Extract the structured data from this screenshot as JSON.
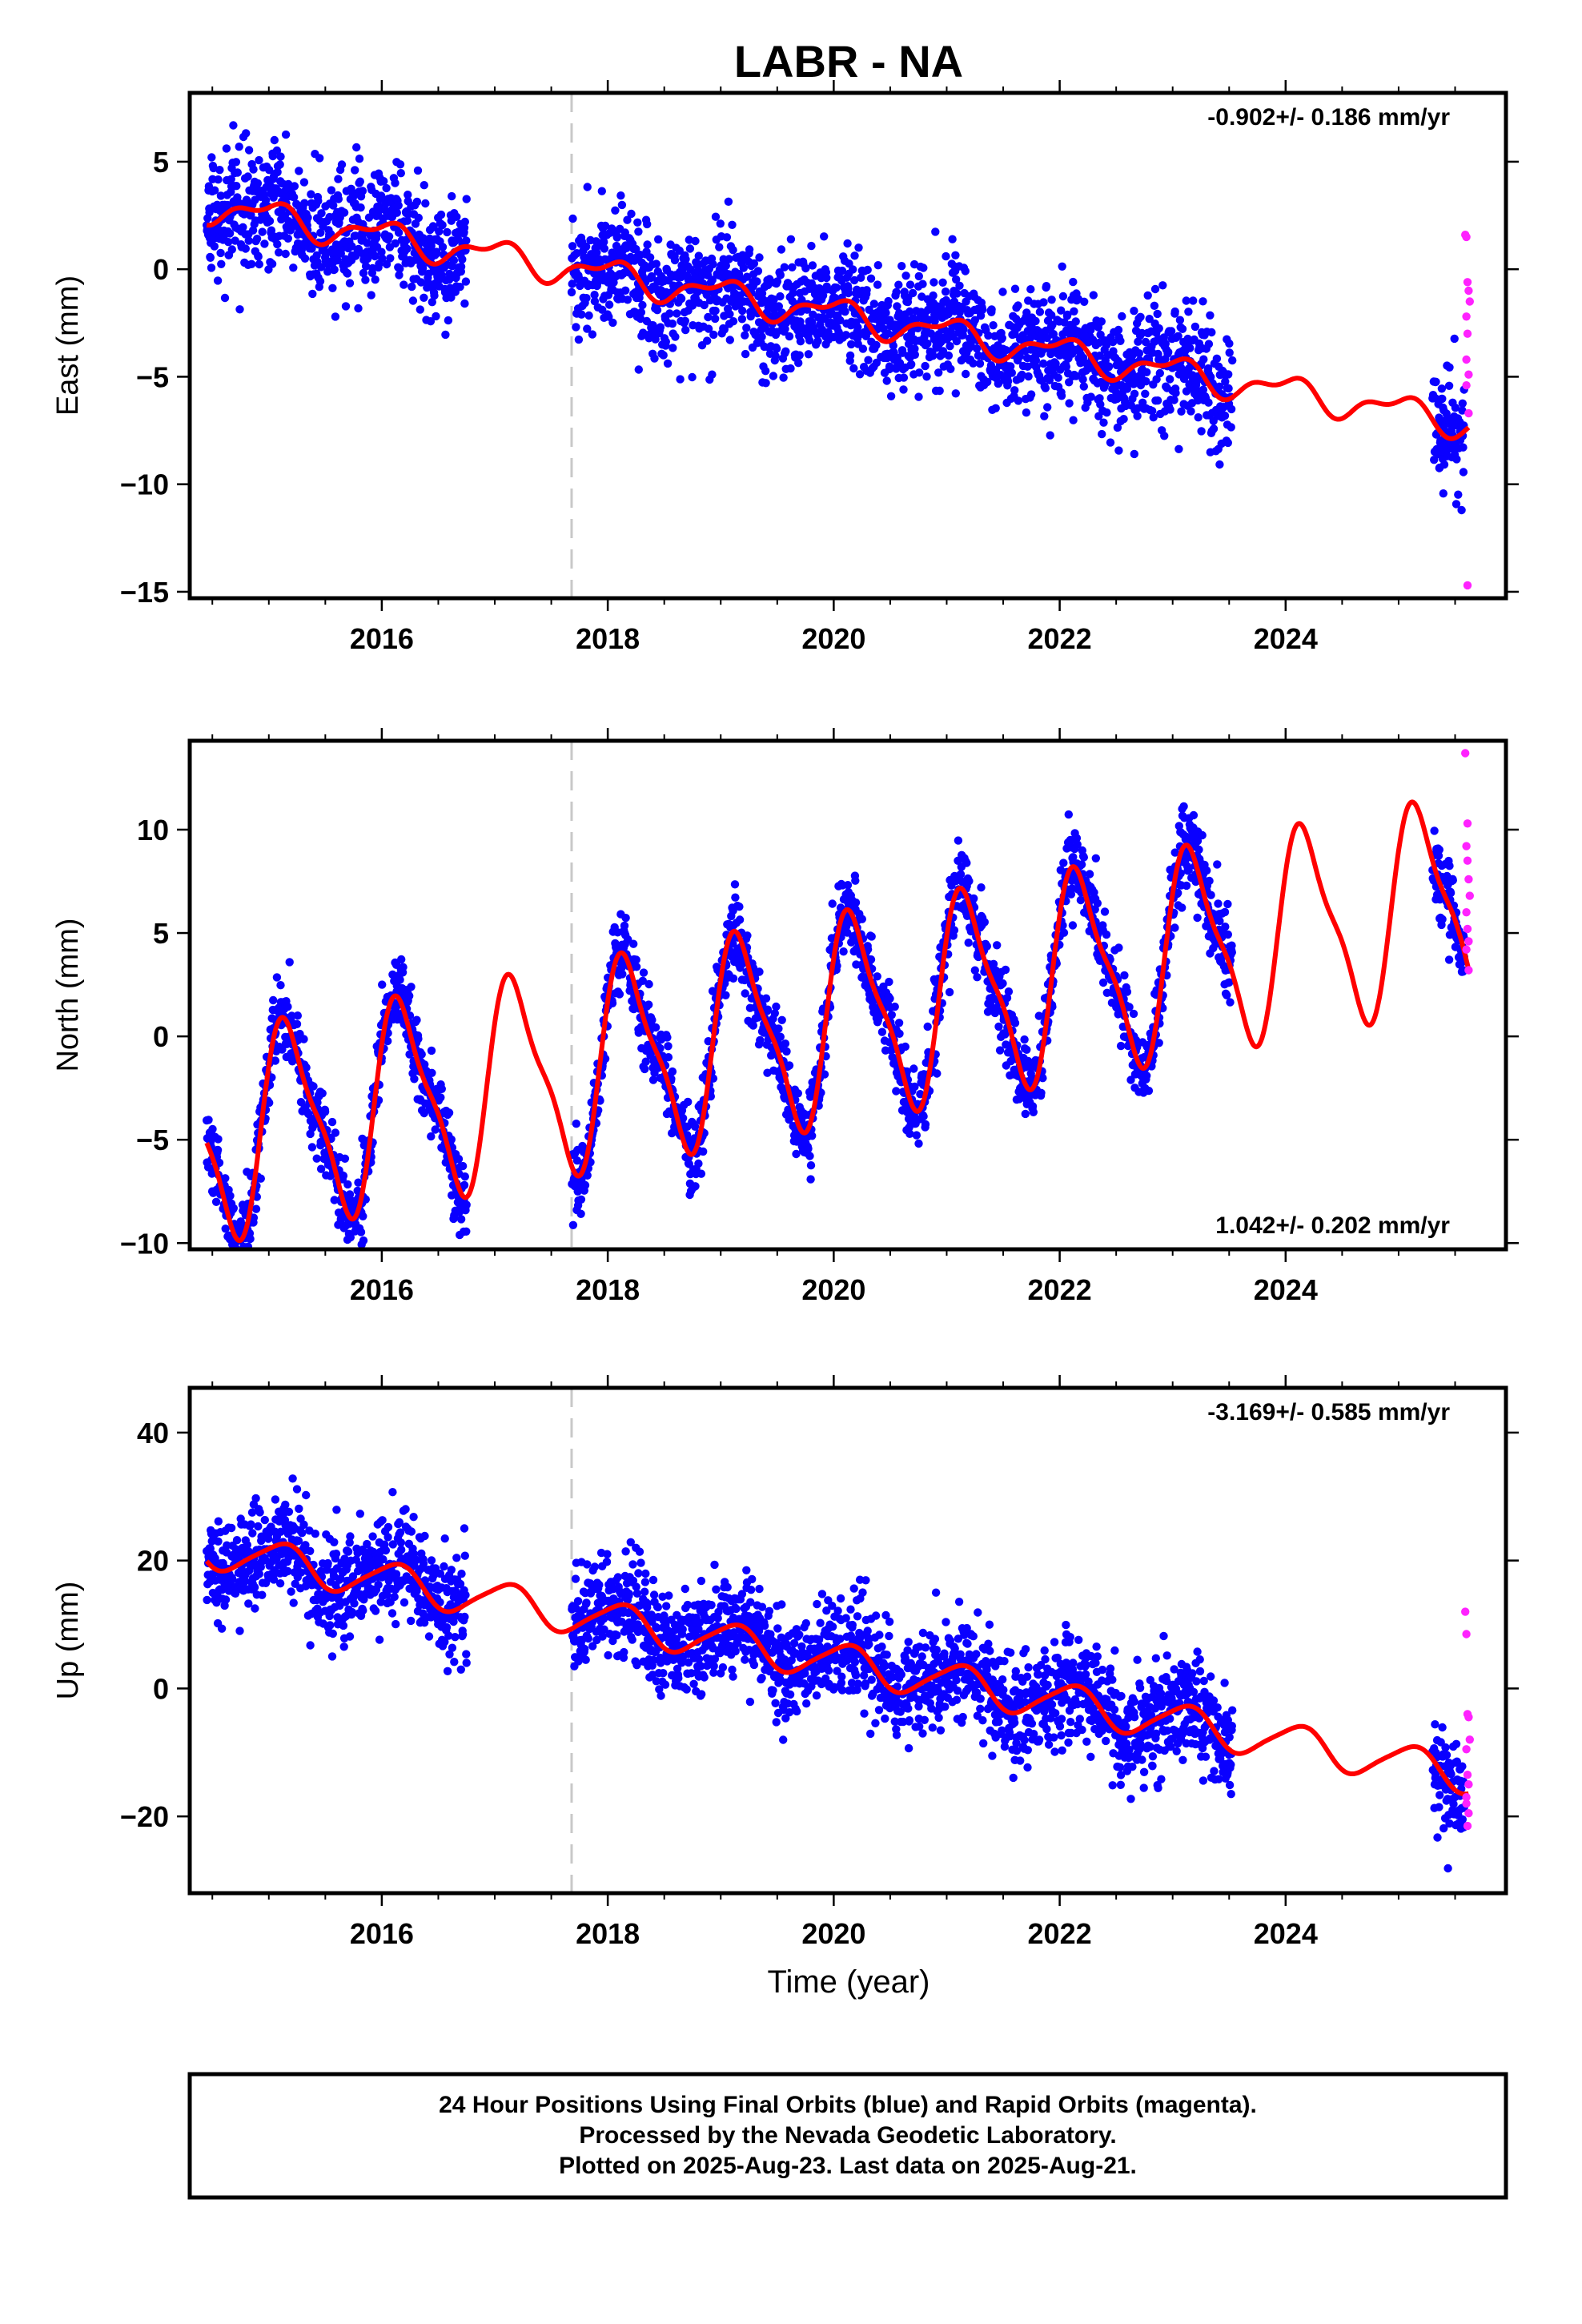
{
  "figure": {
    "title": "LABR - NA",
    "xlabel": "Time (year)",
    "footer_lines": [
      "24 Hour Positions Using Final Orbits (blue) and Rapid Orbits (magenta).",
      "Processed by the Nevada Geodetic Laboratory.",
      "Plotted on 2025-Aug-23. Last data on 2025-Aug-21."
    ],
    "colors": {
      "final_orbits": "#0a00ff",
      "rapid_orbits": "#ff22ff",
      "model": "#ff0000",
      "break_line": "#c8c8c8"
    }
  },
  "chart_data": [
    {
      "type": "scatter",
      "component": "east",
      "ylabel": "East (mm)",
      "rate_label": "-0.902+/- 0.186 mm/yr",
      "rate_position": "top-right",
      "xlim": [
        2014.3,
        2025.95
      ],
      "ylim": [
        -15.3,
        8.2
      ],
      "x_ticks": [
        2016,
        2018,
        2020,
        2022,
        2024
      ],
      "x_tick_labels": [
        "2016",
        "2018",
        "2020",
        "2022",
        "2024"
      ],
      "y_ticks": [
        -15,
        -10,
        -5,
        0,
        5
      ],
      "y_tick_labels": [
        "−15",
        "−10",
        "−5",
        "0",
        "5"
      ],
      "break_lines": [
        2017.68
      ],
      "model_params": {
        "ref": 2014.5,
        "offset": 2.9,
        "rate": -0.902,
        "annual_sin": -0.95,
        "annual_cos": 1.15,
        "semiannual_sin": 0.25,
        "semiannual_cos": -0.2
      },
      "noise_sd": 1.35,
      "final_segments": [
        [
          2014.45,
          2016.75
        ],
        [
          2017.68,
          2023.53
        ],
        [
          2025.3,
          2025.58
        ]
      ],
      "rapid_values": {
        "x": [
          2025.59,
          2025.6,
          2025.61,
          2025.62,
          2025.63,
          2025.6,
          2025.61,
          2025.62,
          2025.6,
          2025.62,
          2025.61,
          2025.6
        ],
        "y": [
          1.6,
          1.5,
          -0.6,
          -1.0,
          -1.5,
          -2.2,
          -3.0,
          -4.9,
          -5.4,
          -6.7,
          -14.7,
          -4.2
        ]
      }
    },
    {
      "type": "scatter",
      "component": "north",
      "ylabel": "North (mm)",
      "rate_label": "1.042+/- 0.202 mm/yr",
      "rate_position": "bottom-right",
      "xlim": [
        2014.3,
        2025.95
      ],
      "ylim": [
        -10.3,
        14.3
      ],
      "x_ticks": [
        2016,
        2018,
        2020,
        2022,
        2024
      ],
      "x_tick_labels": [
        "2016",
        "2018",
        "2020",
        "2022",
        "2024"
      ],
      "y_ticks": [
        -10,
        -5,
        0,
        5,
        10
      ],
      "y_tick_labels": [
        "−10",
        "−5",
        "0",
        "5",
        "10"
      ],
      "break_lines": [
        2017.68
      ],
      "model_params": {
        "ref": 2014.5,
        "offset": -4.9,
        "rate": 1.042,
        "annual_sin": 1.2,
        "annual_cos": 3.6,
        "semiannual_sin": 0.8,
        "semiannual_cos": 1.0
      },
      "noise_sd": 0.95,
      "final_segments": [
        [
          2014.45,
          2016.75
        ],
        [
          2017.68,
          2023.53
        ],
        [
          2025.3,
          2025.58
        ]
      ],
      "rapid_values": {
        "x": [
          2025.59,
          2025.6,
          2025.61,
          2025.62,
          2025.63,
          2025.6,
          2025.61,
          2025.62,
          2025.6,
          2025.62,
          2025.61
        ],
        "y": [
          13.7,
          9.2,
          8.5,
          7.6,
          6.8,
          6.0,
          5.2,
          4.6,
          4.2,
          3.2,
          10.3
        ]
      }
    },
    {
      "type": "scatter",
      "component": "up",
      "ylabel": "Up (mm)",
      "rate_label": "-3.169+/- 0.585 mm/yr",
      "rate_position": "top-right",
      "xlim": [
        2014.3,
        2025.95
      ],
      "ylim": [
        -32,
        47
      ],
      "x_ticks": [
        2016,
        2018,
        2020,
        2022,
        2024
      ],
      "x_tick_labels": [
        "2016",
        "2018",
        "2020",
        "2022",
        "2024"
      ],
      "y_ticks": [
        -20,
        0,
        20,
        40
      ],
      "y_tick_labels": [
        "−20",
        "0",
        "20",
        "40"
      ],
      "break_lines": [
        2017.68
      ],
      "model_params": {
        "ref": 2014.5,
        "offset": 21.7,
        "rate": -3.169,
        "annual_sin": -1.6,
        "annual_cos": 4.1,
        "semiannual_sin": 0.0,
        "semiannual_cos": -0.5
      },
      "noise_sd": 4.0,
      "final_segments": [
        [
          2014.45,
          2016.75
        ],
        [
          2017.68,
          2023.53
        ],
        [
          2025.3,
          2025.58
        ]
      ],
      "rapid_values": {
        "x": [
          2025.59,
          2025.6,
          2025.61,
          2025.62,
          2025.63,
          2025.6,
          2025.61,
          2025.62,
          2025.6,
          2025.62,
          2025.61,
          2025.6
        ],
        "y": [
          12.0,
          8.5,
          -4.0,
          -4.5,
          -8.0,
          -9.5,
          -13.5,
          -15.0,
          -17.0,
          -19.5,
          -21.5,
          -18.0
        ]
      }
    }
  ]
}
